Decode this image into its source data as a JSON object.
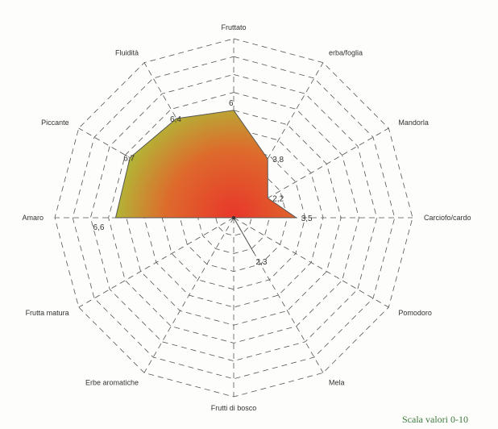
{
  "chart_data": {
    "type": "radar",
    "axes": [
      "Fruttato",
      "erba/foglia",
      "Mandorla",
      "Carciofo/cardo",
      "Pomodoro",
      "Mela",
      "Frutti di bosco",
      "Erbe aromatiche",
      "Frutta matura",
      "Amaro",
      "Piccante",
      "Fluidità"
    ],
    "values": [
      6,
      3.8,
      2.2,
      3.5,
      0,
      2.3,
      0,
      0,
      0,
      6.6,
      6.7,
      6.4
    ],
    "value_labels": [
      "6",
      "3,8",
      "2,2",
      "3,5",
      "",
      "2,3",
      "",
      "",
      "",
      "6,6",
      "6,7",
      "6,4"
    ],
    "range": [
      0,
      10
    ],
    "rings": 10,
    "note": "Scala valori 0-10"
  },
  "colors": {
    "high": "#6aaa2c",
    "mid": "#d4a92a",
    "low": "#e8362a",
    "grid": "#555555",
    "note": "#3c7a3c"
  }
}
